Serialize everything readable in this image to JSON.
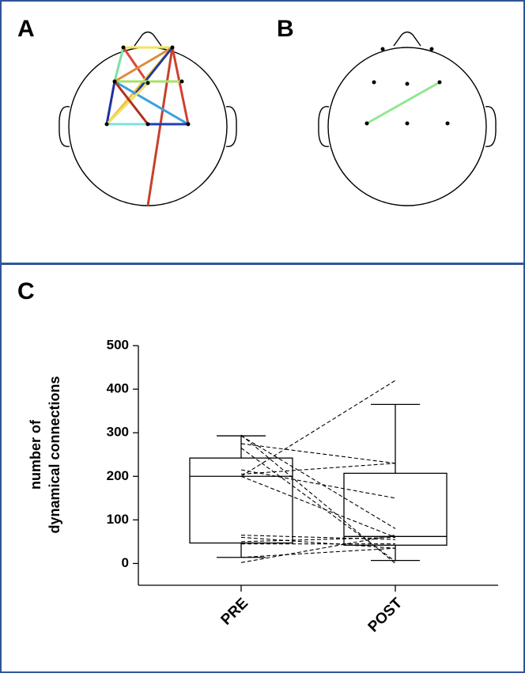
{
  "panel_labels": [
    "A",
    "B",
    "C"
  ],
  "chart_data": {
    "type": "box",
    "ylabel_lines": [
      "number of",
      "dynamical connections"
    ],
    "categories": [
      "PRE",
      "POST"
    ],
    "boxes": [
      {
        "min": 14,
        "q1": 47,
        "median": 200,
        "q3": 242,
        "max": 293
      },
      {
        "min": 7,
        "q1": 42,
        "median": 62,
        "q3": 207,
        "max": 365
      }
    ],
    "paired": [
      [
        200,
        420
      ],
      [
        295,
        0
      ],
      [
        293,
        80
      ],
      [
        275,
        230
      ],
      [
        265,
        5
      ],
      [
        215,
        150
      ],
      [
        205,
        230
      ],
      [
        200,
        60
      ],
      [
        65,
        55
      ],
      [
        60,
        35
      ],
      [
        50,
        60
      ],
      [
        45,
        45
      ],
      [
        14,
        35
      ],
      [
        2,
        65
      ]
    ],
    "ylim": [
      -50,
      500
    ],
    "yticks": [
      0,
      100,
      200,
      300,
      400,
      500
    ]
  }
}
